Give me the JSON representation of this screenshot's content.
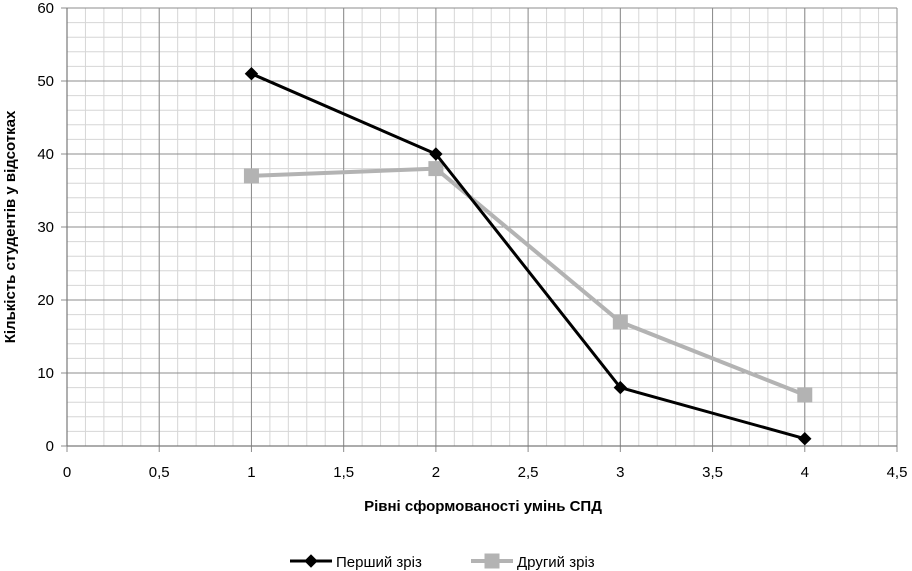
{
  "chart_data": {
    "type": "scatter",
    "title": "",
    "xlabel": "Рівні сформованості умінь СПД",
    "ylabel": "Кількість студентів у відсотках",
    "xlim": [
      0,
      4.5
    ],
    "ylim": [
      0,
      60
    ],
    "xticks": [
      "0",
      "0,5",
      "1",
      "1,5",
      "2",
      "2,5",
      "3",
      "3,5",
      "4",
      "4,5"
    ],
    "yticks": [
      "0",
      "10",
      "20",
      "30",
      "40",
      "50",
      "60"
    ],
    "x_major_step": 0.5,
    "y_major_step": 10,
    "x_minor_step": 0.1,
    "y_minor_step": 2,
    "grid": true,
    "legend_position": "bottom",
    "series": [
      {
        "name": "Перший зріз",
        "x": [
          1,
          2,
          3,
          4
        ],
        "y": [
          51,
          40,
          8,
          1
        ],
        "color": "#000000",
        "marker": "diamond"
      },
      {
        "name": "Другий зріз",
        "x": [
          1,
          2,
          3,
          4
        ],
        "y": [
          37,
          38,
          17,
          7
        ],
        "color": "#b3b3b3",
        "marker": "square"
      }
    ]
  }
}
